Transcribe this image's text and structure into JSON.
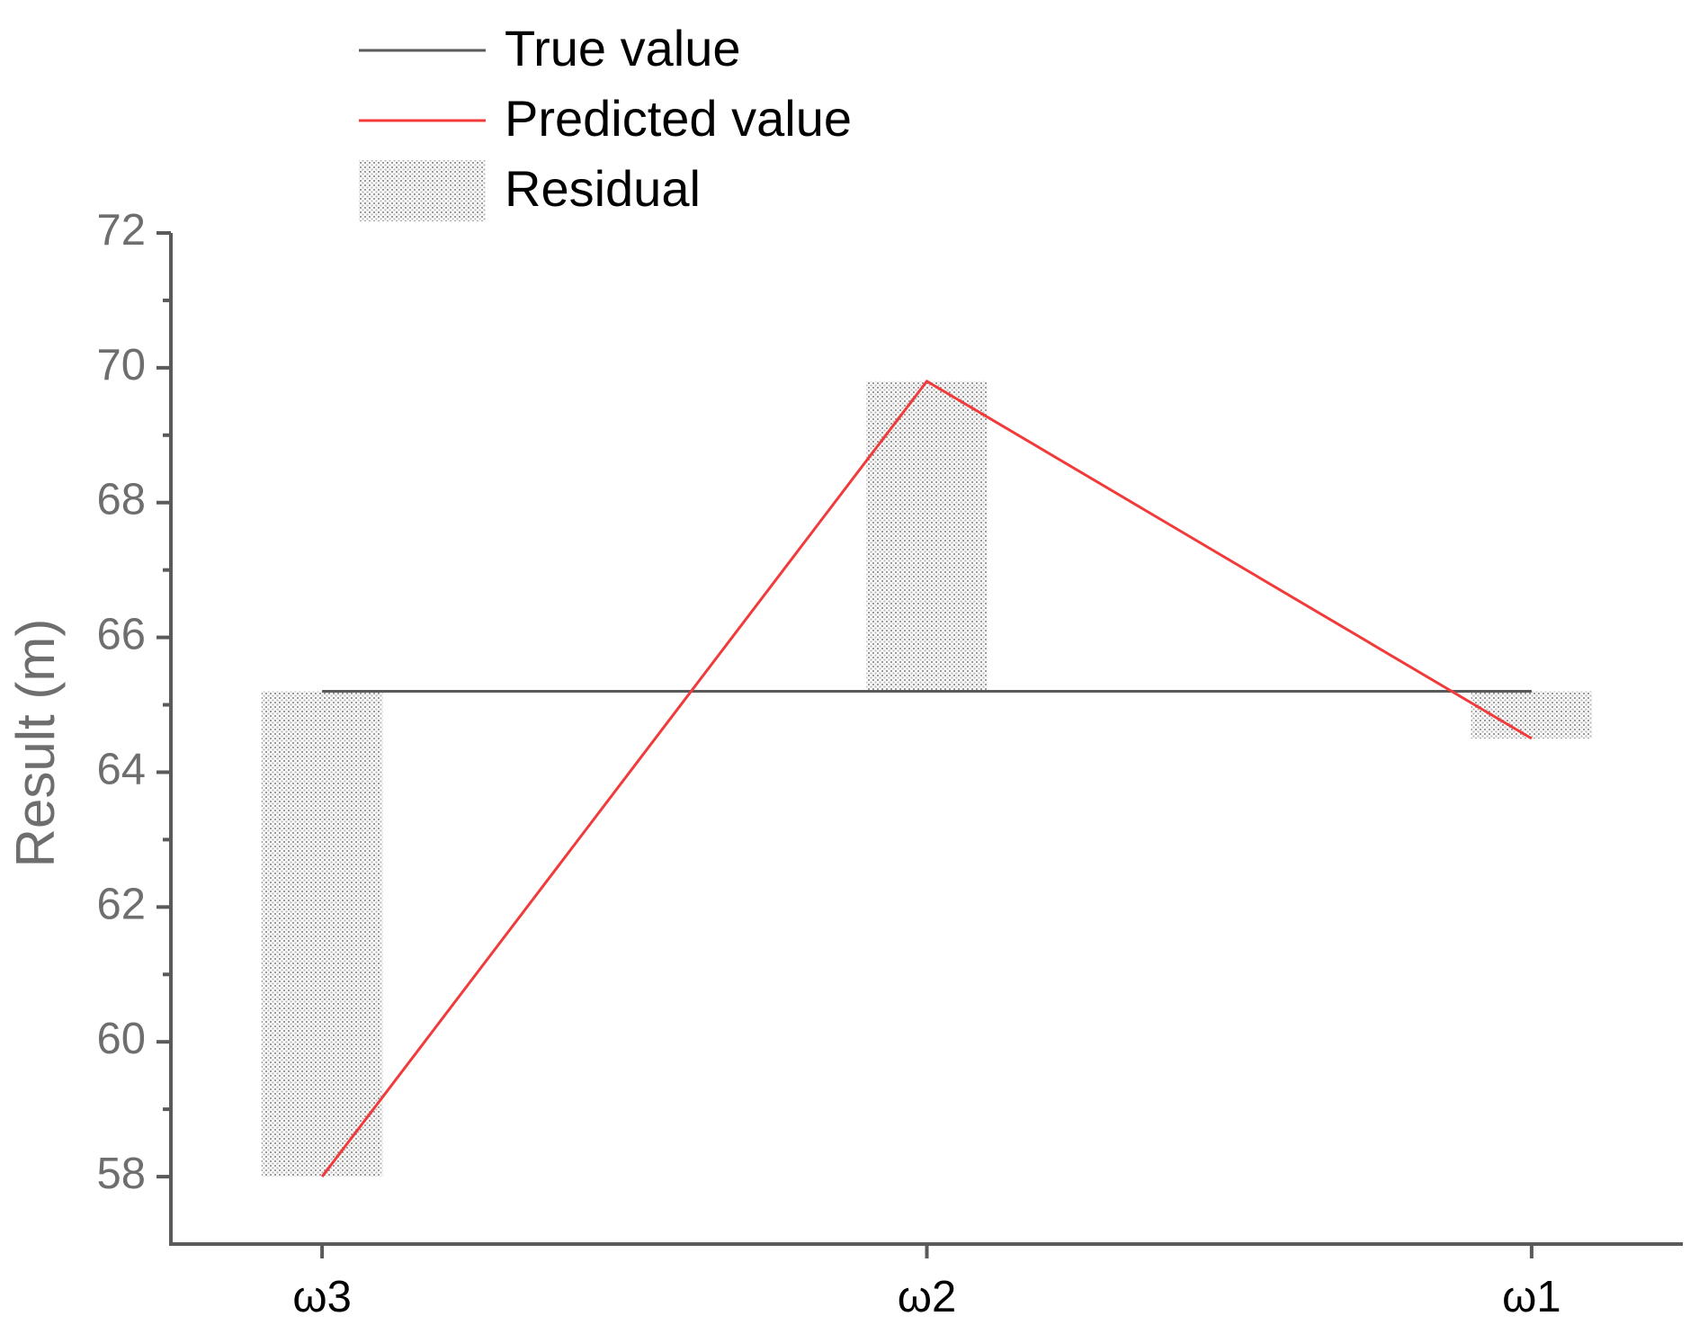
{
  "chart_data": {
    "type": "line",
    "y_label": "Result (m)",
    "categories": [
      "ω3",
      "ω2",
      "ω1"
    ],
    "series": [
      {
        "name": "True value",
        "color": "#5a5a5a",
        "values": [
          65.2,
          65.2,
          65.2
        ]
      },
      {
        "name": "Predicted value",
        "color": "#f23a3a",
        "values": [
          58.0,
          69.8,
          64.5
        ]
      },
      {
        "name": "Residual",
        "type": "bar",
        "color": "#9a9a9a",
        "values": [
          -7.2,
          4.6,
          -0.7
        ]
      }
    ],
    "ylim": [
      57,
      72
    ],
    "yticks": [
      58,
      60,
      62,
      64,
      66,
      68,
      70,
      72
    ],
    "minor_yticks": [
      59,
      61,
      63,
      65,
      67,
      69,
      71
    ],
    "legend": "top-left"
  }
}
